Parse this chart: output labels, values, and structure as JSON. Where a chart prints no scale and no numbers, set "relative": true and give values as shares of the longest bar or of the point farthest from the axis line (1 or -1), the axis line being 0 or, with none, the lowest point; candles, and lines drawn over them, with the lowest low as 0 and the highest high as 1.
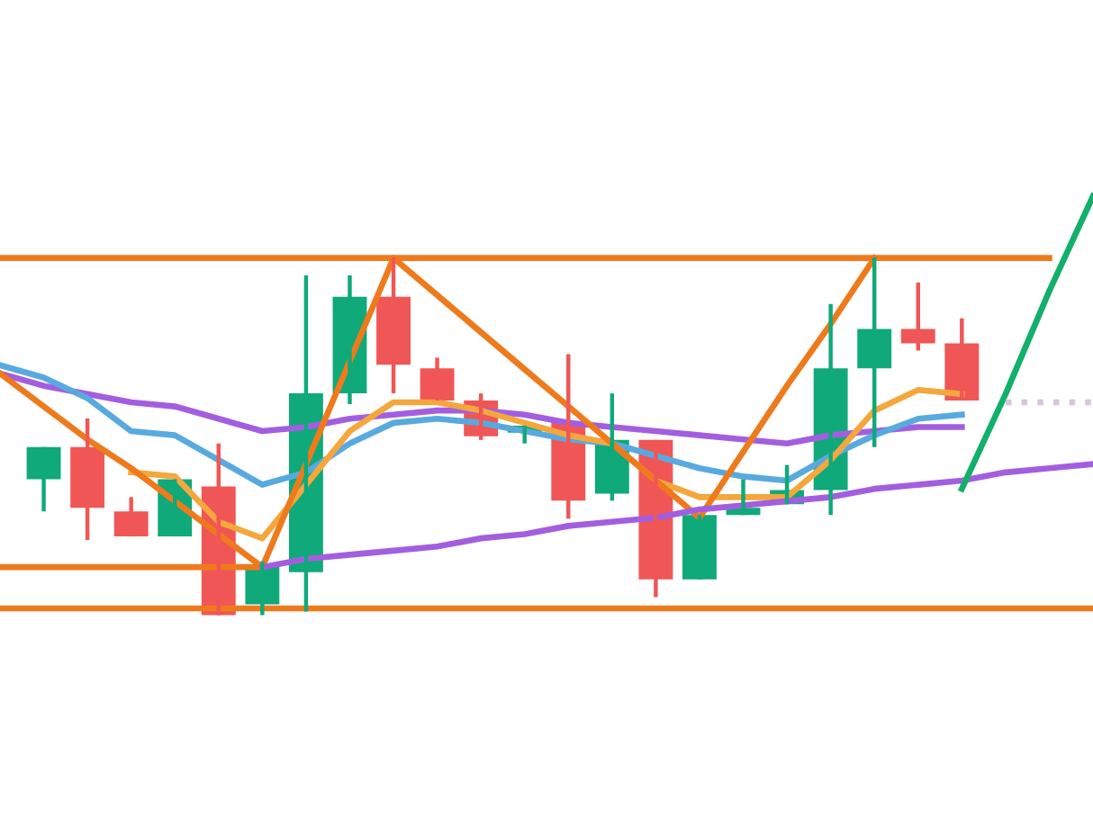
{
  "chart_data": [
    {
      "type": "candlestick",
      "relative": true,
      "categories": [
        null,
        null,
        null,
        null,
        null,
        null,
        null,
        null,
        null,
        null,
        null,
        null,
        null,
        null,
        null,
        null,
        null,
        null,
        null,
        null,
        null,
        null
      ],
      "ohlc": [
        [
          0.38,
          0.47,
          0.29,
          0.47
        ],
        [
          0.47,
          0.55,
          0.21,
          0.3
        ],
        [
          0.29,
          0.33,
          0.22,
          0.22
        ],
        [
          0.22,
          0.38,
          0.22,
          0.38
        ],
        [
          0.36,
          0.48,
          0,
          0
        ],
        [
          0.03,
          0.15,
          0,
          0.14
        ],
        [
          0.12,
          0.95,
          0.01,
          0.62
        ],
        [
          0.62,
          0.95,
          0.59,
          0.89
        ],
        [
          0.89,
          1,
          0.62,
          0.7
        ],
        [
          0.69,
          0.72,
          0.6,
          0.6
        ],
        [
          0.6,
          0.62,
          0.49,
          0.5
        ],
        [
          0.51,
          0.53,
          0.48,
          0.53
        ],
        [
          0.54,
          0.73,
          0.27,
          0.32
        ],
        [
          0.34,
          0.62,
          0.32,
          0.49
        ],
        [
          0.49,
          0.49,
          0.05,
          0.1
        ],
        [
          0.1,
          0.28,
          0.1,
          0.28
        ],
        [
          0.28,
          0.38,
          0.28,
          0.3
        ],
        [
          0.31,
          0.42,
          0.31,
          0.35
        ],
        [
          0.35,
          0.87,
          0.28,
          0.69
        ],
        [
          0.69,
          1,
          0.47,
          0.8
        ],
        [
          0.8,
          0.93,
          0.74,
          0.76
        ],
        [
          0.76,
          0.83,
          0.6,
          0.6
        ]
      ],
      "colors": [
        "#0fa97a",
        "#f05656",
        "#f05656",
        "#0fa97a",
        "#f05656",
        "#0fa97a",
        "#0fa97a",
        "#0fa97a",
        "#f05656",
        "#f05656",
        "#f05656",
        "#0fa97a",
        "#f05656",
        "#0fa97a",
        "#f05656",
        "#0fa97a",
        "#0fa97a",
        "#0fa97a",
        "#0fa97a",
        "#0fa97a",
        "#f05656",
        "#f05656"
      ]
    },
    {
      "type": "line",
      "relative": true,
      "categories": [
        null,
        null,
        null,
        null,
        null,
        null,
        null,
        null,
        null,
        null,
        null,
        null,
        null,
        null,
        null,
        null,
        null,
        null,
        null,
        null,
        null,
        null,
        null,
        null,
        null,
        null
      ],
      "series": [
        {
          "color": "#a35ee0",
          "line_style": "solid",
          "values": [
            0.57,
            0.54,
            0.52,
            0.5,
            0.49,
            0.46,
            0.43,
            0.44,
            0.46,
            0.47,
            0.48,
            0.48,
            0.47,
            0.45,
            0.44,
            0.43,
            0.42,
            0.41,
            0.4,
            0.42,
            0.43,
            0.44,
            0.44,
            null,
            null,
            null
          ]
        },
        {
          "color": "#58a9e0",
          "line_style": "solid",
          "values": [
            0.59,
            0.56,
            0.51,
            0.43,
            0.42,
            0.36,
            0.3,
            0.33,
            0.4,
            0.45,
            0.46,
            0.45,
            0.43,
            0.41,
            0.4,
            0.37,
            0.34,
            0.32,
            0.31,
            0.37,
            0.42,
            0.46,
            0.47,
            null,
            null,
            null
          ]
        },
        {
          "color": "#f4a73c",
          "line_style": "solid",
          "values": [
            null,
            null,
            null,
            0.33,
            0.32,
            0.21,
            0.17,
            0.3,
            0.43,
            0.5,
            0.5,
            0.48,
            0.45,
            0.42,
            0.4,
            0.31,
            0.27,
            0.27,
            0.27,
            0.36,
            0.48,
            0.53,
            0.52,
            null,
            null,
            null
          ]
        },
        {
          "color": "#ef7a1c",
          "line_style": "solid",
          "values": [
            0.85,
            0.85,
            0.85,
            0.85,
            0.85,
            0.85,
            0.85,
            0.85,
            0.85,
            0.85,
            0.85,
            0.85,
            0.85,
            0.85,
            0.85,
            0.85,
            0.85,
            0.85,
            0.85,
            0.85,
            0.85,
            0.85,
            0.85,
            0.85,
            0.85,
            null
          ]
        },
        {
          "color": "#ef7a1c",
          "line_style": "solid",
          "values": [
            0,
            0,
            0,
            0,
            0,
            0,
            0,
            0,
            0,
            0,
            0,
            0,
            0,
            0,
            0,
            0,
            0,
            0,
            0,
            0,
            0,
            0,
            0,
            0,
            0,
            0
          ]
        },
        {
          "color": "#ef7a1c",
          "line_style": "solid",
          "values": [
            0.1,
            0.1,
            0.1,
            0.1,
            0.1,
            0.1,
            0.1,
            null,
            null,
            null,
            null,
            null,
            null,
            null,
            null,
            null,
            null,
            null,
            null,
            null,
            null,
            null,
            null,
            null,
            null,
            null
          ]
        },
        {
          "color": "#ef7a1c",
          "line_style": "solid",
          "values": [
            0.57,
            0.49,
            0.41,
            0.34,
            0.26,
            0.18,
            0.1,
            0.35,
            0.6,
            0.85,
            0.76,
            0.67,
            0.58,
            0.49,
            0.4,
            0.31,
            0.22,
            0.38,
            0.54,
            0.69,
            0.85,
            null,
            null,
            null,
            null,
            null
          ]
        },
        {
          "color": "#a35ee0",
          "line_style": "solid",
          "values": [
            null,
            null,
            null,
            null,
            null,
            null,
            0.1,
            0.12,
            0.13,
            0.14,
            0.15,
            0.17,
            0.18,
            0.2,
            0.21,
            0.22,
            0.24,
            0.25,
            0.26,
            0.27,
            0.29,
            0.3,
            0.31,
            0.33,
            0.34,
            0.35
          ]
        },
        {
          "color": "#12b06a",
          "line_style": "solid",
          "values": [
            null,
            null,
            null,
            null,
            null,
            null,
            null,
            null,
            null,
            null,
            null,
            null,
            null,
            null,
            null,
            null,
            null,
            null,
            null,
            null,
            null,
            null,
            0.29,
            0.52,
            0.77,
            1.0
          ]
        },
        {
          "color": "#d9c4dd",
          "line_style": "dotted",
          "values": [
            null,
            null,
            null,
            null,
            null,
            null,
            null,
            null,
            null,
            null,
            null,
            null,
            null,
            null,
            null,
            null,
            null,
            null,
            null,
            null,
            null,
            null,
            null,
            0.5,
            0.5,
            0.5
          ]
        }
      ]
    }
  ]
}
